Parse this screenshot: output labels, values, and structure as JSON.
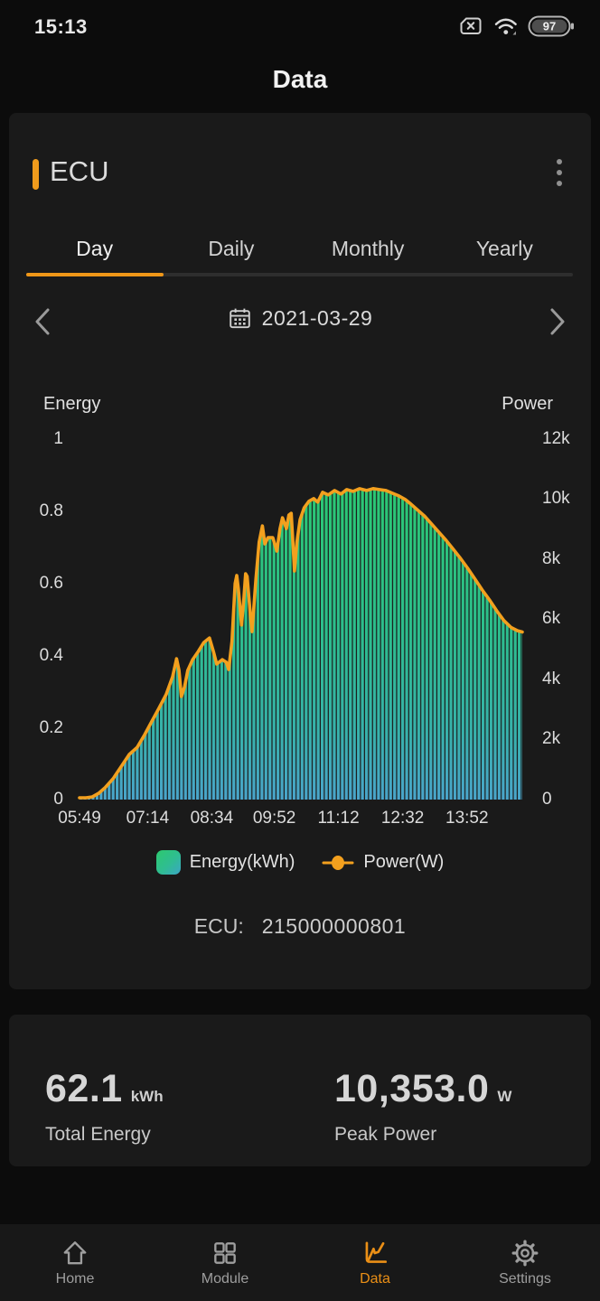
{
  "status_bar": {
    "time": "15:13",
    "battery_percent": "97"
  },
  "header": {
    "title": "Data"
  },
  "device_card": {
    "title": "ECU",
    "tabs": [
      {
        "label": "Day",
        "active": true
      },
      {
        "label": "Daily",
        "active": false
      },
      {
        "label": "Monthly",
        "active": false
      },
      {
        "label": "Yearly",
        "active": false
      }
    ],
    "date_picker": {
      "date": "2021-03-29"
    },
    "legend": [
      {
        "label": "Energy(kWh)"
      },
      {
        "label": "Power(W)"
      }
    ],
    "ecu_label": "ECU:",
    "ecu_serial": "215000000801"
  },
  "chart_data": {
    "type": "combo",
    "x_axis": {
      "tick_labels": [
        "05:49",
        "07:14",
        "08:34",
        "09:52",
        "11:12",
        "12:32",
        "13:52"
      ],
      "domain": [
        "05:49",
        "15:01"
      ]
    },
    "left_axis": {
      "title": "Energy",
      "unit": "kWh",
      "tick_labels": [
        "0",
        "0.2",
        "0.4",
        "0.6",
        "0.8",
        "1"
      ],
      "range": [
        0,
        1
      ]
    },
    "right_axis": {
      "title": "Power",
      "unit": "W",
      "tick_labels": [
        "0",
        "2k",
        "4k",
        "6k",
        "8k",
        "10k",
        "12k"
      ],
      "range": [
        0,
        12000
      ]
    },
    "colors": {
      "area_top": "#2bc873",
      "area_mid1": "#2cbe8c",
      "area_mid2": "#37b2ab",
      "area_bottom": "#4aa5cb",
      "line": "#f3a01e",
      "bar_gap": "#1a1a1a"
    },
    "series": [
      {
        "name": "Energy(kWh)",
        "type": "bar",
        "axis": "left",
        "interval_minutes": 5,
        "note": "bar heights coincide with power curve: energy per 5-min interval (kWh) = power_w / 12000"
      },
      {
        "name": "Power(W)",
        "type": "line",
        "axis": "right",
        "points": [
          [
            "05:49",
            60
          ],
          [
            "05:57",
            60
          ],
          [
            "06:05",
            90
          ],
          [
            "06:13",
            210
          ],
          [
            "06:21",
            400
          ],
          [
            "06:31",
            700
          ],
          [
            "06:41",
            1100
          ],
          [
            "06:51",
            1500
          ],
          [
            "07:01",
            1740
          ],
          [
            "07:10",
            2150
          ],
          [
            "07:19",
            2600
          ],
          [
            "07:28",
            3040
          ],
          [
            "07:37",
            3500
          ],
          [
            "07:45",
            4090
          ],
          [
            "07:50",
            4690
          ],
          [
            "07:53",
            4300
          ],
          [
            "07:56",
            3430
          ],
          [
            "08:00",
            3760
          ],
          [
            "08:04",
            4300
          ],
          [
            "08:10",
            4660
          ],
          [
            "08:17",
            4930
          ],
          [
            "08:24",
            5230
          ],
          [
            "08:31",
            5380
          ],
          [
            "08:36",
            4930
          ],
          [
            "08:40",
            4510
          ],
          [
            "08:47",
            4660
          ],
          [
            "08:52",
            4570
          ],
          [
            "08:55",
            4330
          ],
          [
            "08:59",
            5260
          ],
          [
            "09:03",
            7190
          ],
          [
            "09:05",
            7460
          ],
          [
            "09:07",
            7010
          ],
          [
            "09:11",
            5810
          ],
          [
            "09:14",
            6740
          ],
          [
            "09:16",
            7520
          ],
          [
            "09:18",
            7430
          ],
          [
            "09:22",
            6140
          ],
          [
            "09:24",
            5590
          ],
          [
            "09:29",
            7370
          ],
          [
            "09:33",
            8570
          ],
          [
            "09:37",
            9110
          ],
          [
            "09:40",
            8510
          ],
          [
            "09:44",
            8720
          ],
          [
            "09:50",
            8720
          ],
          [
            "09:55",
            8270
          ],
          [
            "09:59",
            9020
          ],
          [
            "10:02",
            9380
          ],
          [
            "10:07",
            9020
          ],
          [
            "10:10",
            9470
          ],
          [
            "10:13",
            9530
          ],
          [
            "10:17",
            7610
          ],
          [
            "10:20",
            8570
          ],
          [
            "10:24",
            9320
          ],
          [
            "10:29",
            9710
          ],
          [
            "10:35",
            9930
          ],
          [
            "10:41",
            10020
          ],
          [
            "10:46",
            9900
          ],
          [
            "10:52",
            10230
          ],
          [
            "10:59",
            10140
          ],
          [
            "11:07",
            10290
          ],
          [
            "11:15",
            10170
          ],
          [
            "11:22",
            10320
          ],
          [
            "11:30",
            10260
          ],
          [
            "11:38",
            10350
          ],
          [
            "11:47",
            10290
          ],
          [
            "11:55",
            10353
          ],
          [
            "12:03",
            10320
          ],
          [
            "12:11",
            10290
          ],
          [
            "12:19",
            10200
          ],
          [
            "12:27",
            10110
          ],
          [
            "12:35",
            9990
          ],
          [
            "12:42",
            9840
          ],
          [
            "12:50",
            9650
          ],
          [
            "12:59",
            9440
          ],
          [
            "13:08",
            9170
          ],
          [
            "13:17",
            8900
          ],
          [
            "13:26",
            8630
          ],
          [
            "13:35",
            8330
          ],
          [
            "13:44",
            8030
          ],
          [
            "13:53",
            7700
          ],
          [
            "14:02",
            7340
          ],
          [
            "14:11",
            6980
          ],
          [
            "14:20",
            6650
          ],
          [
            "14:29",
            6290
          ],
          [
            "14:38",
            5960
          ],
          [
            "14:47",
            5730
          ],
          [
            "14:55",
            5620
          ],
          [
            "15:01",
            5580
          ]
        ]
      }
    ]
  },
  "summary": {
    "total_energy": {
      "value": "62.1",
      "unit": "kWh",
      "label": "Total Energy"
    },
    "peak_power": {
      "value": "10,353.0",
      "unit": "W",
      "label": "Peak Power"
    }
  },
  "nav": {
    "items": [
      {
        "label": "Home",
        "active": false
      },
      {
        "label": "Module",
        "active": false
      },
      {
        "label": "Data",
        "active": true
      },
      {
        "label": "Settings",
        "active": false
      }
    ]
  }
}
